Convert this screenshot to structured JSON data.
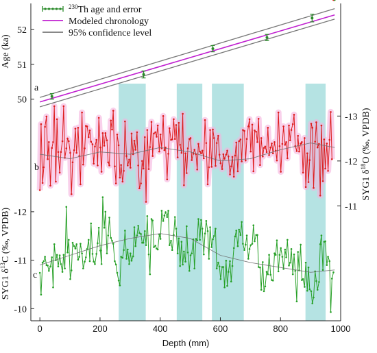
{
  "chart_data": {
    "type": "line",
    "x_axis": {
      "label": "Depth (mm)",
      "range": [
        -30,
        1000
      ],
      "ticks": [
        0,
        200,
        400,
        600,
        800,
        1000
      ]
    },
    "shaded_depth_intervals": [
      [
        262,
        352
      ],
      [
        455,
        540
      ],
      [
        572,
        678
      ],
      [
        883,
        950
      ]
    ],
    "legend": {
      "placement": "top-left",
      "entries": [
        {
          "sup": "230",
          "label": "Th age and error",
          "color": "#2a8a2a"
        },
        {
          "sup": "",
          "label": "Modeled chronology",
          "color": "#c020d0"
        },
        {
          "sup": "",
          "label": "95% confidence level",
          "color": "#777777"
        }
      ]
    },
    "panels": [
      {
        "letter": "a",
        "ylabel": "Age (ka)",
        "axis_side": "left",
        "ylim": [
          49.6,
          52.75
        ],
        "ticks": [
          50,
          51,
          52
        ],
        "th_ages": {
          "depth": [
            40,
            345,
            575,
            755,
            905
          ],
          "age": [
            50.08,
            50.71,
            51.45,
            51.77,
            52.33
          ],
          "error": [
            0.08,
            0.1,
            0.09,
            0.09,
            0.11
          ]
        },
        "modeled_chronology": {
          "depth": [
            0,
            980
          ],
          "age": [
            49.92,
            52.42
          ]
        },
        "confidence_upper": {
          "depth": [
            0,
            980
          ],
          "age": [
            50.05,
            52.6
          ]
        },
        "confidence_lower": {
          "depth": [
            0,
            980
          ],
          "age": [
            49.78,
            52.3
          ]
        }
      },
      {
        "letter": "b",
        "ylabel": "SYG1 δ18O (‰, VPDB)",
        "ylabel_sup": "18",
        "axis_side": "right",
        "ylim": [
          -10.7,
          -13.6
        ],
        "ticks": [
          -11,
          -12,
          -13
        ],
        "color": "#dd1c1c",
        "band_color": "#f5b3dd",
        "smooth_depth": [
          0,
          100,
          200,
          300,
          400,
          500,
          600,
          700,
          800,
          900,
          980
        ],
        "smooth_values": [
          -12.15,
          -12.05,
          -12.2,
          -12.15,
          -12.3,
          -12.2,
          -12.0,
          -12.05,
          -12.25,
          -12.4,
          -12.3
        ],
        "series_depth": [
          0,
          4,
          9,
          13,
          17,
          22,
          26,
          30,
          35,
          40,
          44,
          48,
          53,
          57,
          61,
          66,
          70,
          75,
          79,
          83,
          88,
          92,
          96,
          101,
          105,
          109,
          114,
          118,
          122,
          127,
          131,
          135,
          140,
          144,
          149,
          153,
          157,
          162,
          166,
          170,
          175,
          179,
          183,
          188,
          192,
          196,
          201,
          205,
          209,
          214,
          218,
          223,
          227,
          231,
          236,
          240,
          244,
          249,
          253,
          257,
          262,
          266,
          270,
          275,
          279,
          283,
          288,
          292,
          297,
          301,
          305,
          310,
          314,
          318,
          323,
          327,
          331,
          336,
          340,
          344,
          349,
          353,
          357,
          362,
          366,
          371,
          375,
          379,
          384,
          388,
          392,
          397,
          401,
          405,
          410,
          414,
          418,
          423,
          427,
          431,
          436,
          440,
          445,
          449,
          453,
          458,
          462,
          466,
          471,
          475,
          479,
          484,
          488,
          492,
          497,
          501,
          505,
          510,
          514,
          519,
          523,
          527,
          532,
          536,
          540,
          545,
          549,
          553,
          558,
          562,
          566,
          571,
          575,
          579,
          584,
          588,
          593,
          597,
          601,
          606,
          610,
          614,
          619,
          623,
          627,
          632,
          636,
          640,
          645,
          649,
          653,
          658,
          662,
          667,
          671,
          675,
          680,
          684,
          688,
          693,
          697,
          701,
          706,
          710,
          714,
          719,
          723,
          727,
          732,
          736,
          741,
          745,
          749,
          754,
          758,
          762,
          767,
          771,
          775,
          780,
          784,
          788,
          793,
          797,
          801,
          806,
          810,
          815,
          819,
          823,
          828,
          832,
          836,
          841,
          845,
          849,
          854,
          858,
          862,
          867,
          871,
          875,
          880,
          884,
          889,
          893,
          897,
          902,
          906,
          910,
          915,
          919,
          923,
          928,
          932,
          936,
          941,
          945,
          949,
          954,
          958,
          963,
          967,
          971,
          976,
          980
        ],
        "series_values": [
          -11.35,
          -12.82,
          -11.51,
          -11.86,
          -12.76,
          -12.99,
          -12.04,
          -12.42,
          -11.45,
          -12.29,
          -12.42,
          -13.22,
          -11.54,
          -12.93,
          -12.2,
          -11.74,
          -12.2,
          -12.44,
          -13.22,
          -12.07,
          -12.28,
          -12.5,
          -12.44,
          -12.18,
          -11.26,
          -11.97,
          -12.24,
          -12.72,
          -12.18,
          -12.74,
          -12.11,
          -11.48,
          -13.08,
          -11.92,
          -12.28,
          -12.78,
          -12.77,
          -12.53,
          -12.68,
          -12.43,
          -12.37,
          -11.94,
          -12.32,
          -12.47,
          -11.9,
          -12.96,
          -12.3,
          -11.76,
          -12.62,
          -12.34,
          -12.62,
          -12.46,
          -11.97,
          -11.9,
          -12.9,
          -12.7,
          -13.12,
          -11.88,
          -11.5,
          -12.59,
          -12.35,
          -11.63,
          -11.91,
          -11.54,
          -11.78,
          -12.88,
          -12.11,
          -11.9,
          -12.03,
          -11.85,
          -12.61,
          -12.15,
          -12.45,
          -12.25,
          -12.64,
          -11.9,
          -11.39,
          -11.5,
          -12.0,
          -11.83,
          -12.53,
          -11.09,
          -12.69,
          -11.82,
          -12.31,
          -12.87,
          -12.11,
          -12.61,
          -12.64,
          -12.54,
          -12.79,
          -12.21,
          -12.59,
          -12.28,
          -13.0,
          -12.24,
          -12.3,
          -11.59,
          -12.16,
          -12.73,
          -12.47,
          -12.48,
          -12.93,
          -12.49,
          -12.8,
          -12.08,
          -12.85,
          -12.36,
          -12.18,
          -13.05,
          -11.46,
          -12.17,
          -11.73,
          -12.28,
          -12.49,
          -12.51,
          -12.02,
          -12.16,
          -12.25,
          -12.15,
          -11.81,
          -12.38,
          -12.21,
          -12.17,
          -12.23,
          -12.06,
          -12.91,
          -12.4,
          -11.48,
          -11.86,
          -12.69,
          -11.87,
          -12.7,
          -12.51,
          -11.89,
          -12.4,
          -12.56,
          -12.14,
          -11.95,
          -11.82,
          -12.15,
          -12.05,
          -12.14,
          -12.23,
          -12.1,
          -11.7,
          -11.88,
          -12.09,
          -11.65,
          -12.12,
          -12.41,
          -11.77,
          -12.44,
          -12.48,
          -11.99,
          -12.69,
          -12.67,
          -12.01,
          -12.49,
          -12.77,
          -12.93,
          -12.21,
          -12.81,
          -11.77,
          -12.68,
          -12.65,
          -12.42,
          -12.94,
          -11.91,
          -12.51,
          -12.1,
          -12.29,
          -12.32,
          -12.2,
          -12.74,
          -12.13,
          -12.3,
          -12.39,
          -12.17,
          -12.42,
          -12.23,
          -12.01,
          -13.08,
          -12.33,
          -11.76,
          -12.38,
          -12.77,
          -12.36,
          -12.42,
          -12.06,
          -12.79,
          -12.46,
          -12.69,
          -12.82,
          -13.03,
          -12.33,
          -12.22,
          -12.56,
          -12.21,
          -12.39,
          -12.42,
          -11.74,
          -12.51,
          -11.42,
          -12.17,
          -11.53,
          -12.02,
          -12.83,
          -12.74,
          -11.4,
          -12.43,
          -12.86,
          -12.3,
          -12.38,
          -11.23,
          -12.79,
          -11.55,
          -12.48,
          -11.83,
          -12.39,
          -11.78,
          -12.47,
          -13.09,
          -12.04
        ]
      },
      {
        "letter": "c",
        "ylabel": "SYG1 δ13C (‰, VPDB)",
        "ylabel_sup": "13",
        "axis_side": "left",
        "ylim": [
          -9.75,
          -12.55
        ],
        "ticks": [
          -10,
          -11,
          -12
        ],
        "color": "#27a027",
        "smooth_depth": [
          0,
          100,
          200,
          300,
          400,
          500,
          600,
          700,
          800,
          900,
          980
        ],
        "smooth_values": [
          -10.9,
          -11.1,
          -11.3,
          -11.45,
          -11.55,
          -11.45,
          -11.1,
          -10.95,
          -10.85,
          -10.75,
          -10.8
        ],
        "series_depth": [
          0,
          4,
          9,
          13,
          17,
          22,
          26,
          30,
          35,
          40,
          44,
          48,
          53,
          57,
          61,
          66,
          70,
          75,
          79,
          83,
          88,
          92,
          96,
          101,
          105,
          109,
          114,
          118,
          122,
          127,
          131,
          135,
          140,
          144,
          149,
          153,
          157,
          162,
          166,
          170,
          175,
          179,
          183,
          188,
          192,
          196,
          201,
          205,
          209,
          214,
          218,
          223,
          227,
          231,
          236,
          240,
          244,
          249,
          253,
          257,
          262,
          266,
          270,
          275,
          279,
          283,
          288,
          292,
          297,
          301,
          305,
          310,
          314,
          318,
          323,
          327,
          331,
          336,
          340,
          344,
          349,
          353,
          357,
          362,
          366,
          371,
          375,
          379,
          384,
          388,
          392,
          397,
          401,
          405,
          410,
          414,
          418,
          423,
          427,
          431,
          436,
          440,
          445,
          449,
          453,
          458,
          462,
          466,
          471,
          475,
          479,
          484,
          488,
          492,
          497,
          501,
          505,
          510,
          514,
          519,
          523,
          527,
          532,
          536,
          540,
          545,
          549,
          553,
          558,
          562,
          566,
          571,
          575,
          579,
          584,
          588,
          593,
          597,
          601,
          606,
          610,
          614,
          619,
          623,
          627,
          632,
          636,
          640,
          645,
          649,
          653,
          658,
          662,
          667,
          671,
          675,
          680,
          684,
          688,
          693,
          697,
          701,
          706,
          710,
          714,
          719,
          723,
          727,
          732,
          736,
          741,
          745,
          749,
          754,
          758,
          762,
          767,
          771,
          775,
          780,
          784,
          788,
          793,
          797,
          801,
          806,
          810,
          815,
          819,
          823,
          828,
          832,
          836,
          841,
          845,
          849,
          854,
          858,
          862,
          867,
          871,
          875,
          880,
          884,
          889,
          893,
          897,
          902,
          906,
          910,
          915,
          919,
          923,
          928,
          932,
          936,
          941,
          945,
          949,
          954,
          958,
          963,
          967,
          971,
          976,
          980
        ],
        "series_values": [
          -10.74,
          -10.29,
          -10.95,
          -10.98,
          -11.07,
          -10.9,
          -10.89,
          -10.78,
          -10.87,
          -11.06,
          -10.44,
          -11.33,
          -11.0,
          -11.11,
          -10.87,
          -11.1,
          -10.92,
          -10.76,
          -11.11,
          -10.83,
          -12.1,
          -11.16,
          -11.42,
          -10.61,
          -10.79,
          -11.36,
          -11.29,
          -11.24,
          -11.33,
          -11.01,
          -11.07,
          -11.34,
          -11.14,
          -10.83,
          -10.97,
          -11.06,
          -11.23,
          -11.42,
          -10.98,
          -11.76,
          -11.13,
          -10.97,
          -10.92,
          -11.13,
          -11.35,
          -11.67,
          -11.2,
          -10.92,
          -12.3,
          -11.67,
          -12.0,
          -11.14,
          -11.51,
          -11.88,
          -11.46,
          -11.4,
          -11.34,
          -10.98,
          -10.91,
          -10.74,
          -10.58,
          -10.48,
          -11.07,
          -11.05,
          -11.21,
          -11.61,
          -11.03,
          -11.22,
          -10.92,
          -11.14,
          -10.99,
          -11.08,
          -11.68,
          -11.29,
          -11.51,
          -11.71,
          -11.56,
          -11.54,
          -11.36,
          -11.36,
          -11.6,
          -11.31,
          -11.91,
          -11.12,
          -10.71,
          -11.85,
          -11.82,
          -11.27,
          -11.3,
          -11.24,
          -11.22,
          -11.53,
          -11.44,
          -12.02,
          -11.81,
          -11.92,
          -11.99,
          -11.89,
          -12.02,
          -11.31,
          -11.4,
          -11.21,
          -11.52,
          -11.89,
          -11.65,
          -11.14,
          -11.45,
          -10.88,
          -11.38,
          -10.91,
          -11.18,
          -10.97,
          -11.7,
          -11.16,
          -10.78,
          -11.1,
          -11.14,
          -11.43,
          -10.83,
          -11.44,
          -11.41,
          -11.85,
          -11.42,
          -11.83,
          -11.65,
          -11.12,
          -11.55,
          -11.81,
          -11.6,
          -11.03,
          -11.68,
          -11.27,
          -11.43,
          -11.5,
          -11.65,
          -10.83,
          -10.95,
          -10.87,
          -10.61,
          -10.86,
          -10.86,
          -10.44,
          -10.99,
          -10.47,
          -10.76,
          -10.98,
          -10.56,
          -10.88,
          -11.25,
          -11.49,
          -11.61,
          -11.29,
          -11.63,
          -11.52,
          -11.79,
          -11.34,
          -11.21,
          -11.32,
          -11.51,
          -11.03,
          -11.23,
          -11.31,
          -11.34,
          -11.72,
          -11.39,
          -11.52,
          -11.52,
          -10.86,
          -10.85,
          -10.39,
          -10.96,
          -10.36,
          -10.46,
          -10.76,
          -10.71,
          -11.11,
          -10.7,
          -10.59,
          -10.58,
          -11.14,
          -11.11,
          -11.41,
          -10.77,
          -11.11,
          -11.25,
          -11.07,
          -10.82,
          -11.22,
          -11.06,
          -11.42,
          -10.89,
          -10.95,
          -11.23,
          -10.71,
          -11.12,
          -10.78,
          -10.15,
          -11.17,
          -10.79,
          -11.32,
          -10.59,
          -10.61,
          -10.45,
          -10.95,
          -10.37,
          -10.85,
          -10.4,
          -10.36,
          -10.11,
          -10.23,
          -10.77,
          -10.57,
          -10.39,
          -10.55,
          -11.33,
          -11.51,
          -10.8,
          -11.38,
          -11.39,
          -10.9,
          -11.07,
          -10.98,
          -9.93,
          -10.62,
          -10.75
        ]
      }
    ]
  }
}
